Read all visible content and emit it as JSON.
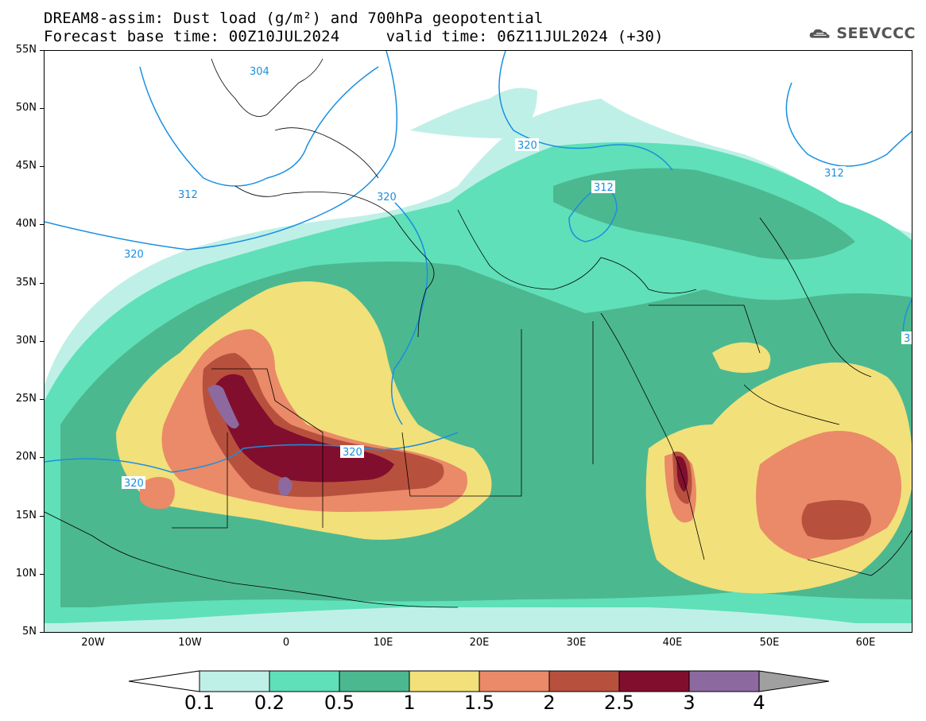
{
  "title": {
    "line1": "DREAM8-assim: Dust load (g/m²) and 700hPa geopotential",
    "line2": "Forecast base time: 00Z10JUL2024     valid time: 06Z11JUL2024 (+30)"
  },
  "logo": {
    "text": "SEEVCCC",
    "icon": "cloud-logo-icon"
  },
  "axes": {
    "lat_labels": [
      "55N",
      "50N",
      "45N",
      "40N",
      "35N",
      "30N",
      "25N",
      "20N",
      "15N",
      "10N",
      "5N"
    ],
    "lon_labels": [
      "20W",
      "10W",
      "0",
      "10E",
      "20E",
      "30E",
      "40E",
      "50E",
      "60E"
    ]
  },
  "contours": {
    "labels": [
      "304",
      "320",
      "312",
      "320",
      "312",
      "320",
      "320",
      "320",
      "312",
      "3"
    ],
    "line_color": "#1a8fe0"
  },
  "colorbar": {
    "labels": [
      "0.1",
      "0.2",
      "0.5",
      "1",
      "1.5",
      "2",
      "2.5",
      "3",
      "4"
    ],
    "colors": [
      "#ffffff",
      "#bff0e8",
      "#5fe0b8",
      "#4cb890",
      "#f2e07a",
      "#ea8a68",
      "#b8503e",
      "#820e2e",
      "#8c6aa0",
      "#a0a0a0"
    ]
  },
  "palette": {
    "c01": "#bff0e8",
    "c02": "#5fe0b8",
    "c05": "#4cb890",
    "c1": "#f2e07a",
    "c15": "#ea8a68",
    "c2": "#b8503e",
    "c25": "#820e2e",
    "c3": "#8c6aa0"
  }
}
